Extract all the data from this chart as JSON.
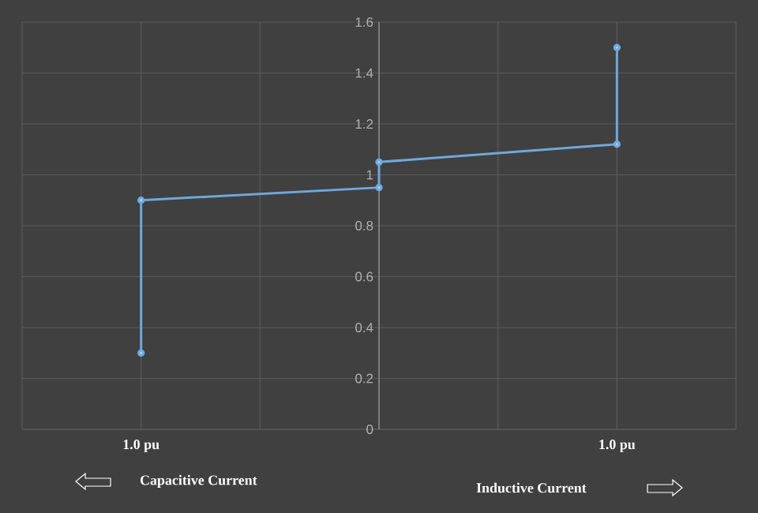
{
  "chart_data": {
    "type": "line",
    "x": [
      -1,
      -1,
      0,
      0,
      1,
      1
    ],
    "series": [
      {
        "color": "#6fa8dc",
        "values": [
          0.3,
          0.9,
          0.95,
          1.05,
          1.12,
          1.5
        ]
      }
    ],
    "xlim": [
      -1.5,
      1.5
    ],
    "xticks": [
      {
        "value": -1.5,
        "label": null
      },
      {
        "value": -1,
        "label": "1.0 pu"
      },
      {
        "value": -0.5,
        "label": null
      },
      {
        "value": 0,
        "label": null
      },
      {
        "value": 0.5,
        "label": null
      },
      {
        "value": 1,
        "label": "1.0 pu"
      },
      {
        "value": 1.5,
        "label": null
      }
    ],
    "ylim": [
      0,
      1.6
    ],
    "yticks": [
      0,
      0.2,
      0.4,
      0.6,
      0.8,
      1,
      1.2,
      1.4,
      1.6
    ],
    "grid": true,
    "marker": "circle",
    "line_style": "solid",
    "annotations": [
      "Capacitive Current",
      "Inductive Current"
    ]
  }
}
